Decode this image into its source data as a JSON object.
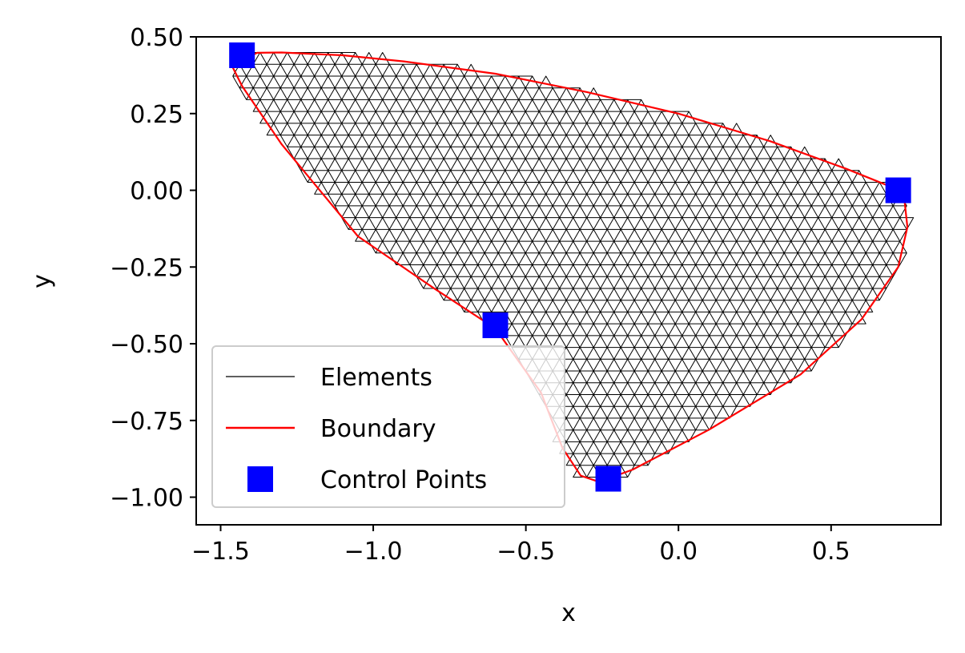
{
  "chart_data": {
    "type": "scatter",
    "title": "",
    "xlabel": "x",
    "ylabel": "y",
    "xlim": [
      -1.58,
      0.86
    ],
    "ylim": [
      -1.09,
      0.5
    ],
    "xticks": [
      -1.5,
      -1.0,
      -0.5,
      0.0,
      0.5
    ],
    "xtick_labels": [
      "−1.5",
      "−1.0",
      "−0.5",
      "0.0",
      "0.5"
    ],
    "yticks": [
      0.5,
      0.25,
      0.0,
      -0.25,
      -0.5,
      -0.75,
      -1.0
    ],
    "ytick_labels": [
      "0.50",
      "0.25",
      "0.00",
      "−0.25",
      "−0.50",
      "−0.75",
      "−1.00"
    ],
    "grid": false,
    "legend_position": "lower-left",
    "series": [
      {
        "name": "Elements",
        "kind": "triangular-mesh",
        "color": "#000000"
      },
      {
        "name": "Boundary",
        "kind": "line",
        "color": "#ff0000",
        "x": [
          -1.44,
          -1.38,
          -1.3,
          -1.1,
          -0.9,
          -0.6,
          -0.3,
          0.0,
          0.3,
          0.55,
          0.7,
          0.74,
          0.75,
          0.72,
          0.6,
          0.4,
          0.1,
          -0.15,
          -0.26,
          -0.32,
          -0.38,
          -0.45,
          -0.55,
          -0.6,
          -0.8,
          -1.05,
          -1.3,
          -1.43,
          -1.46,
          -1.44
        ],
        "y": [
          0.42,
          0.448,
          0.449,
          0.44,
          0.42,
          0.38,
          0.32,
          0.25,
          0.16,
          0.07,
          0.01,
          -0.03,
          -0.12,
          -0.25,
          -0.42,
          -0.6,
          -0.78,
          -0.91,
          -0.95,
          -0.93,
          -0.84,
          -0.66,
          -0.52,
          -0.45,
          -0.32,
          -0.15,
          0.15,
          0.34,
          0.4,
          0.42
        ]
      },
      {
        "name": "Control Points",
        "kind": "marker",
        "marker": "square",
        "color": "#0000ff",
        "x": [
          -1.43,
          -0.6,
          -0.23,
          0.72
        ],
        "y": [
          0.44,
          -0.44,
          -0.94,
          0.0
        ]
      }
    ]
  }
}
